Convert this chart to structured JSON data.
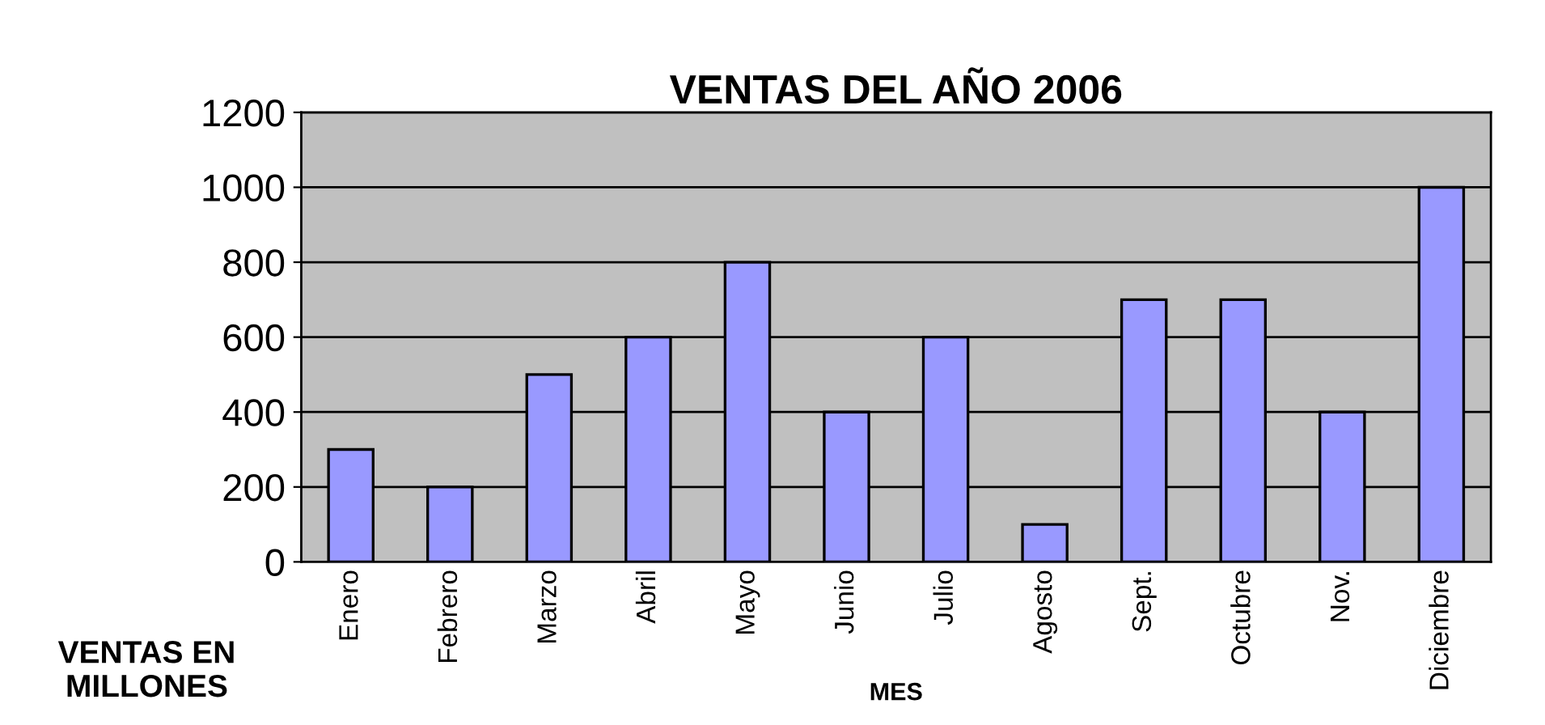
{
  "chart_data": {
    "type": "bar",
    "title": "VENTAS DEL AÑO 2006",
    "xlabel": "MES",
    "ylabel": "VENTAS EN MILLONES",
    "categories": [
      "Enero",
      "Febrero",
      "Marzo",
      "Abril",
      "Mayo",
      "Junio",
      "Julio",
      "Agosto",
      "Sept.",
      "Octubre",
      "Nov.",
      "Diciembre"
    ],
    "values": [
      300,
      200,
      500,
      600,
      800,
      400,
      600,
      100,
      700,
      700,
      400,
      1000
    ],
    "color": "#9999ff",
    "ylim": [
      0,
      1200
    ],
    "yticks": [
      0,
      200,
      400,
      600,
      800,
      1000,
      1200
    ],
    "grid": "y",
    "legend": false
  }
}
